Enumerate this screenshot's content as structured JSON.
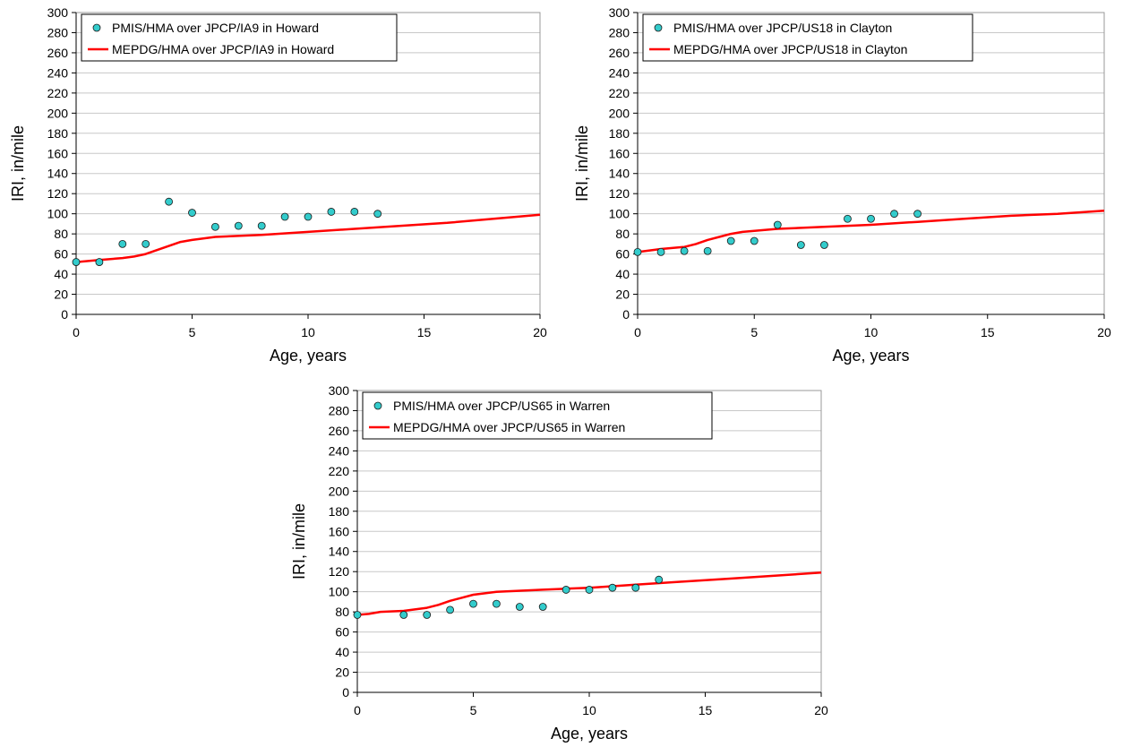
{
  "chart_data": [
    {
      "type": "scatter",
      "xlabel": "Age, years",
      "ylabel": "IRI, in/mile",
      "xlim": [
        0,
        20
      ],
      "ylim": [
        0,
        300
      ],
      "xticks": [
        0,
        5,
        10,
        15,
        20
      ],
      "yticks": [
        0,
        20,
        40,
        60,
        80,
        100,
        120,
        140,
        160,
        180,
        200,
        220,
        240,
        260,
        280,
        300
      ],
      "grid": "horizontal",
      "legend_position": "top-left",
      "series": [
        {
          "name": "PMIS/HMA over JPCP/IA9 in Howard",
          "kind": "scatter",
          "color": "#33cccc",
          "x": [
            0,
            1,
            2,
            3,
            4,
            5,
            6,
            7,
            8,
            9,
            10,
            11,
            12,
            13
          ],
          "y": [
            52,
            52,
            70,
            70,
            112,
            101,
            87,
            88,
            88,
            97,
            97,
            102,
            102,
            100
          ]
        },
        {
          "name": "MEPDG/HMA over JPCP/IA9 in Howard",
          "kind": "line",
          "color": "#ff0000",
          "x": [
            0,
            1,
            2,
            2.5,
            3,
            3.5,
            4,
            4.5,
            5,
            6,
            8,
            10,
            12,
            14,
            16,
            18,
            20
          ],
          "y": [
            52,
            54,
            56,
            57.5,
            60,
            64,
            68,
            72,
            74,
            77,
            79,
            82,
            85,
            88,
            91,
            95,
            99
          ]
        }
      ]
    },
    {
      "type": "scatter",
      "xlabel": "Age, years",
      "ylabel": "IRI, in/mile",
      "xlim": [
        0,
        20
      ],
      "ylim": [
        0,
        300
      ],
      "xticks": [
        0,
        5,
        10,
        15,
        20
      ],
      "yticks": [
        0,
        20,
        40,
        60,
        80,
        100,
        120,
        140,
        160,
        180,
        200,
        220,
        240,
        260,
        280,
        300
      ],
      "grid": "horizontal",
      "legend_position": "top-left",
      "series": [
        {
          "name": "PMIS/HMA over JPCP/US18 in Clayton",
          "kind": "scatter",
          "color": "#33cccc",
          "x": [
            0,
            1,
            2,
            3,
            4,
            5,
            6,
            7,
            8,
            9,
            10,
            11,
            12
          ],
          "y": [
            62,
            62,
            63,
            63,
            73,
            73,
            89,
            69,
            69,
            95,
            95,
            100,
            100
          ]
        },
        {
          "name": "MEPDG/HMA over JPCP/US18 in Clayton",
          "kind": "line",
          "color": "#ff0000",
          "x": [
            0,
            1,
            2,
            2.5,
            3,
            3.5,
            4,
            4.5,
            5,
            6,
            8,
            10,
            12,
            14,
            16,
            18,
            20
          ],
          "y": [
            62,
            65,
            67,
            70,
            74,
            77,
            80,
            82,
            83,
            85,
            87,
            89,
            92,
            95,
            98,
            100,
            103
          ]
        }
      ]
    },
    {
      "type": "scatter",
      "xlabel": "Age, years",
      "ylabel": "IRI, in/mile",
      "xlim": [
        0,
        20
      ],
      "ylim": [
        0,
        300
      ],
      "xticks": [
        0,
        5,
        10,
        15,
        20
      ],
      "yticks": [
        0,
        20,
        40,
        60,
        80,
        100,
        120,
        140,
        160,
        180,
        200,
        220,
        240,
        260,
        280,
        300
      ],
      "grid": "horizontal",
      "legend_position": "top-left",
      "series": [
        {
          "name": "PMIS/HMA over JPCP/US65 in Warren",
          "kind": "scatter",
          "color": "#33cccc",
          "x": [
            0,
            2,
            3,
            4,
            5,
            6,
            7,
            8,
            9,
            10,
            11,
            12,
            13
          ],
          "y": [
            77,
            77,
            77,
            82,
            88,
            88,
            85,
            85,
            102,
            102,
            104,
            104,
            112
          ]
        },
        {
          "name": "MEPDG/HMA over JPCP/US65 in Warren",
          "kind": "line",
          "color": "#ff0000",
          "x": [
            0,
            0.5,
            1,
            2,
            3,
            3.5,
            4,
            4.5,
            5,
            6,
            8,
            10,
            12,
            14,
            16,
            18,
            20
          ],
          "y": [
            77,
            78,
            80,
            81,
            84,
            87,
            91,
            94,
            97,
            100,
            102,
            104,
            107,
            110,
            113,
            116,
            119
          ]
        }
      ]
    }
  ]
}
